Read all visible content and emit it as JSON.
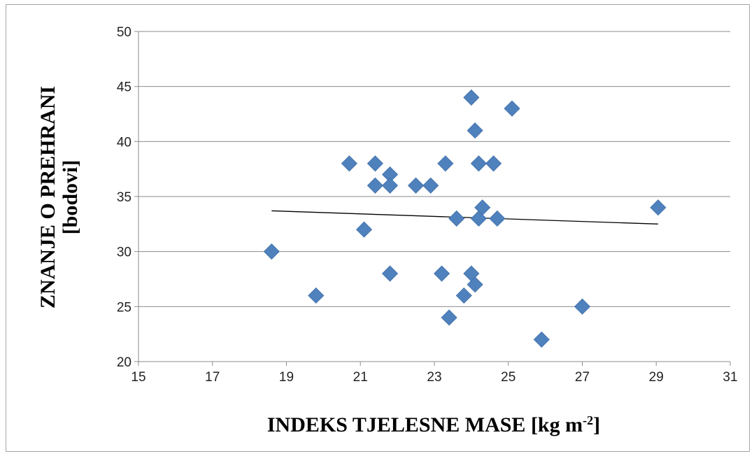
{
  "chart_data": {
    "type": "scatter",
    "title": "",
    "xlabel": "INDEKS TJELESNE MASE [kg m",
    "xlabel_sup": "-2",
    "xlabel_end": "]",
    "ylabel_line1": "ZNANJE O PREHRANI",
    "ylabel_line2": "[bodovi]",
    "xlim": [
      15,
      31
    ],
    "ylim": [
      20,
      50
    ],
    "x_ticks": [
      "15",
      "17",
      "19",
      "21",
      "23",
      "25",
      "27",
      "29",
      "31"
    ],
    "y_ticks": [
      "20",
      "25",
      "30",
      "35",
      "40",
      "45",
      "50"
    ],
    "grid": true,
    "legend": "none",
    "marker": "diamond",
    "marker_color": "#4f81bd",
    "trendline": {
      "x": [
        18.6,
        29.05
      ],
      "y": [
        33.7,
        32.5
      ],
      "color": "#000000"
    },
    "series": [
      {
        "points": [
          {
            "x": 18.6,
            "y": 30
          },
          {
            "x": 19.8,
            "y": 26
          },
          {
            "x": 20.7,
            "y": 38
          },
          {
            "x": 21.1,
            "y": 32
          },
          {
            "x": 21.4,
            "y": 38
          },
          {
            "x": 21.4,
            "y": 36
          },
          {
            "x": 21.8,
            "y": 37
          },
          {
            "x": 21.8,
            "y": 36
          },
          {
            "x": 21.8,
            "y": 28
          },
          {
            "x": 22.5,
            "y": 36
          },
          {
            "x": 22.9,
            "y": 36
          },
          {
            "x": 23.2,
            "y": 28
          },
          {
            "x": 23.3,
            "y": 38
          },
          {
            "x": 23.4,
            "y": 24
          },
          {
            "x": 23.6,
            "y": 33
          },
          {
            "x": 23.8,
            "y": 26
          },
          {
            "x": 24.0,
            "y": 44
          },
          {
            "x": 24.0,
            "y": 28
          },
          {
            "x": 24.1,
            "y": 41
          },
          {
            "x": 24.1,
            "y": 27
          },
          {
            "x": 24.2,
            "y": 38
          },
          {
            "x": 24.2,
            "y": 33
          },
          {
            "x": 24.3,
            "y": 34
          },
          {
            "x": 24.6,
            "y": 38
          },
          {
            "x": 24.7,
            "y": 33
          },
          {
            "x": 25.1,
            "y": 43
          },
          {
            "x": 25.9,
            "y": 22
          },
          {
            "x": 27.0,
            "y": 25
          },
          {
            "x": 29.05,
            "y": 34
          }
        ]
      }
    ]
  }
}
